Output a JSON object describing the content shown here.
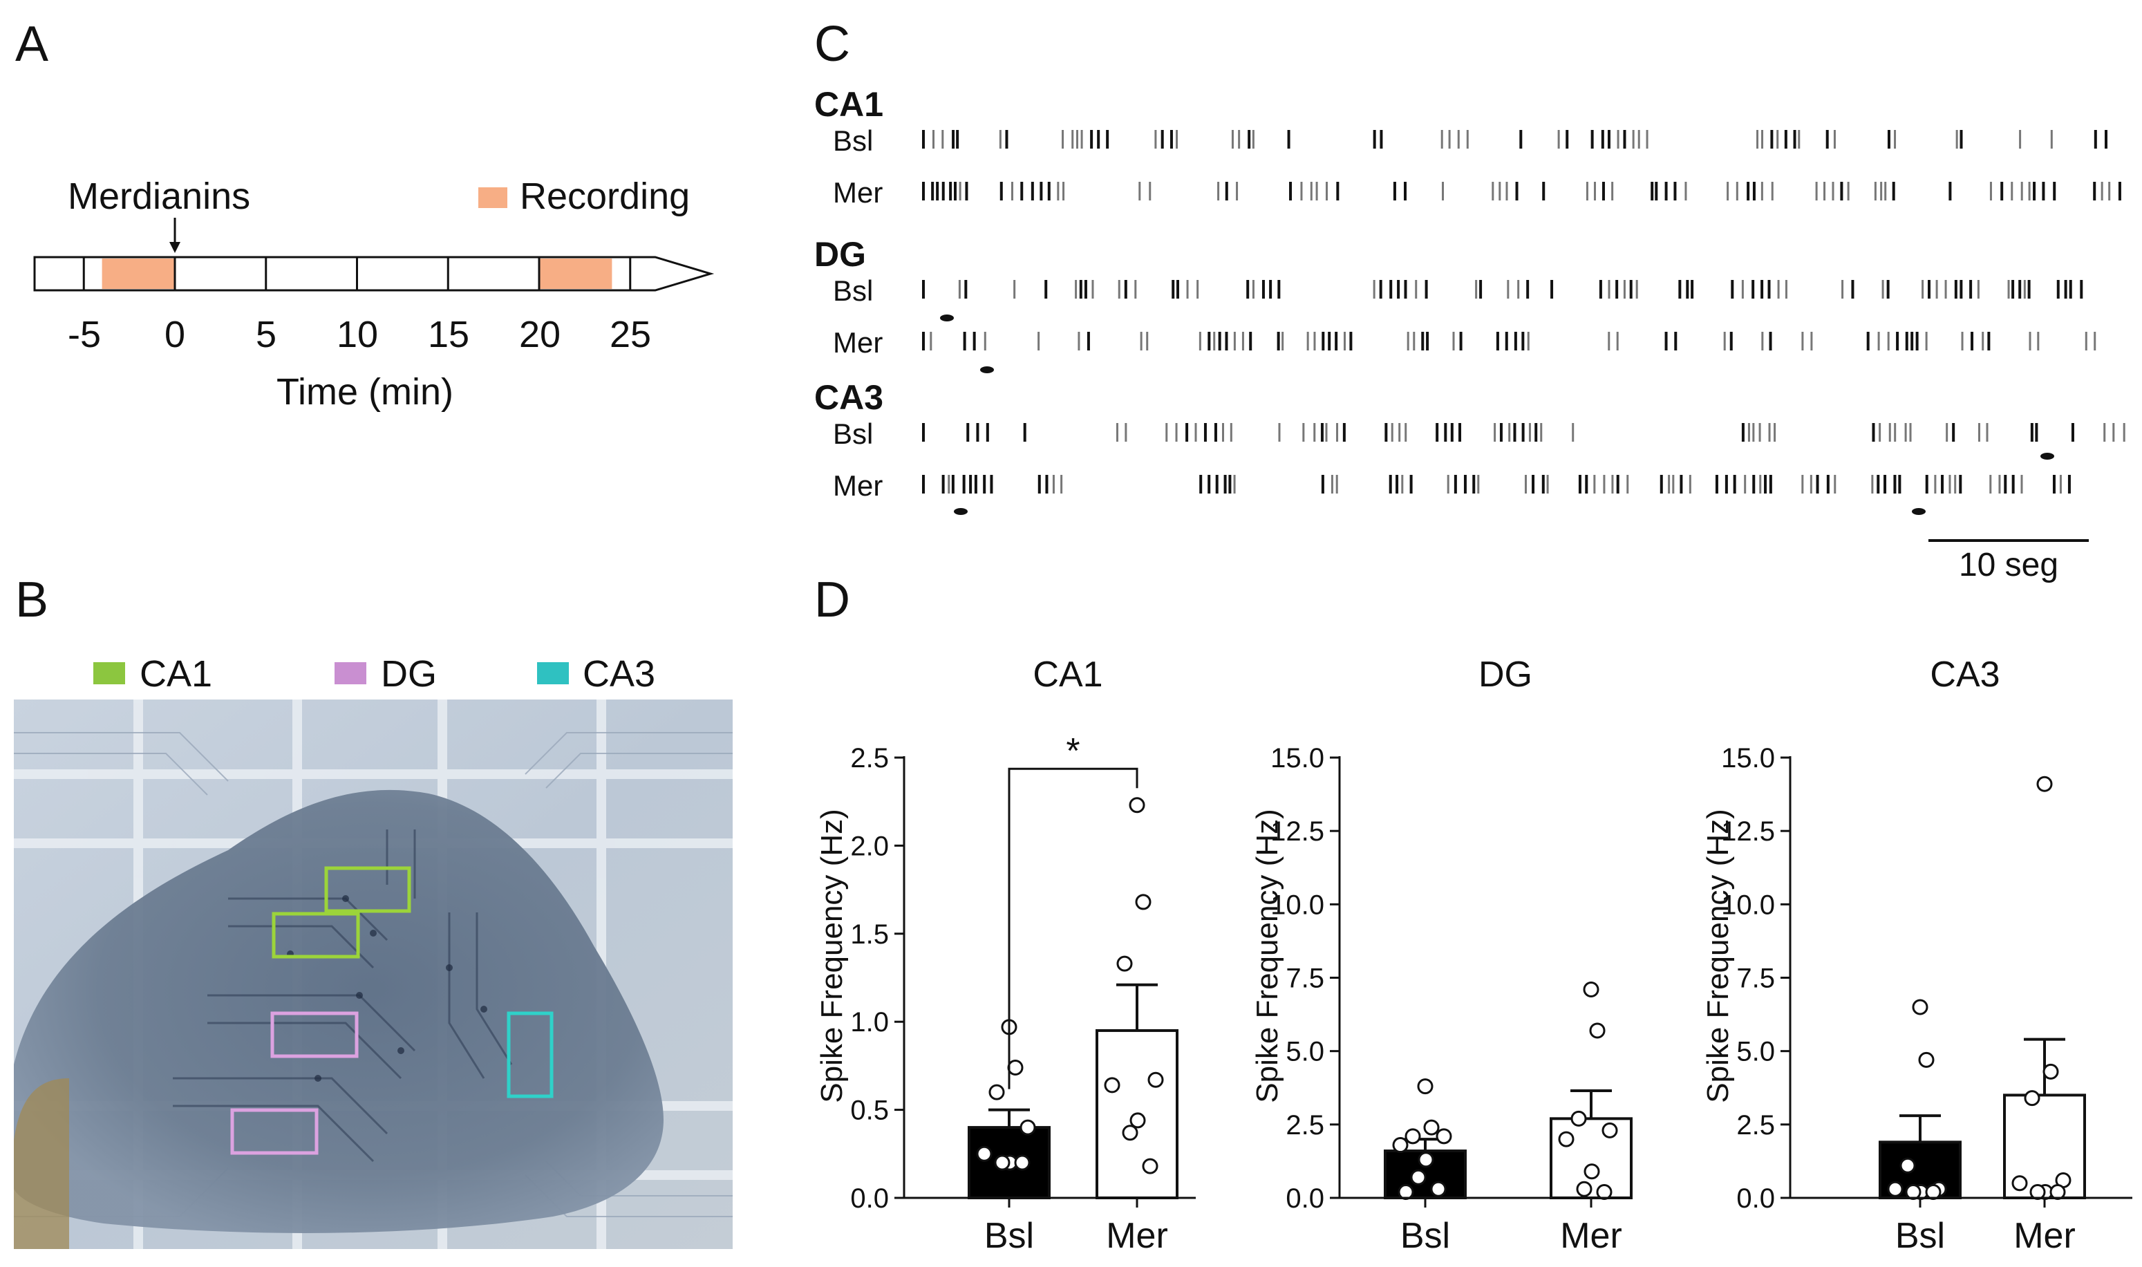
{
  "panels": {
    "a": "A",
    "b": "B",
    "c": "C",
    "d": "D"
  },
  "timeline": {
    "drug_label": "Merdianins",
    "legend_label": "Recording",
    "recording_color": "#f7ae85",
    "ticks": [
      "-5",
      "0",
      "5",
      "10",
      "15",
      "20",
      "25"
    ],
    "xlabel": "Time (min)",
    "recording_windows": [
      [
        -4,
        0
      ],
      [
        20,
        24
      ]
    ]
  },
  "photo": {
    "legend": [
      {
        "label": "CA1",
        "color": "#8cc63f"
      },
      {
        "label": "DG",
        "color": "#c98fd1"
      },
      {
        "label": "CA3",
        "color": "#2fc1c1"
      }
    ]
  },
  "raster": {
    "groups": [
      {
        "region": "CA1",
        "traces": [
          "Bsl",
          "Mer"
        ]
      },
      {
        "region": "DG",
        "traces": [
          "Bsl",
          "Mer"
        ]
      },
      {
        "region": "CA3",
        "traces": [
          "Bsl",
          "Mer"
        ]
      }
    ],
    "scalebar_label": "10 seg"
  },
  "chart_data": [
    {
      "type": "bar",
      "title": "CA1",
      "ylabel": "Spike Frequency (Hz)",
      "categories": [
        "Bsl",
        "Mer"
      ],
      "values": [
        0.4,
        0.95
      ],
      "sem": [
        0.1,
        0.26
      ],
      "ylim": [
        0,
        2.5
      ],
      "yticks": [
        "0.0",
        "0.5",
        "1.0",
        "1.5",
        "2.0",
        "2.5"
      ],
      "points": [
        [
          0.97,
          0.74,
          0.6,
          0.4,
          0.25,
          0.2,
          0.2,
          0.2
        ],
        [
          2.23,
          1.68,
          1.33,
          0.67,
          0.64,
          0.44,
          0.37,
          0.18
        ]
      ],
      "significance": "*",
      "bar_colors": [
        "#000000",
        "#ffffff"
      ]
    },
    {
      "type": "bar",
      "title": "DG",
      "ylabel": "Spike Frequency (Hz)",
      "categories": [
        "Bsl",
        "Mer"
      ],
      "values": [
        1.6,
        2.7
      ],
      "sem": [
        0.4,
        0.95
      ],
      "ylim": [
        0,
        15
      ],
      "yticks": [
        "0.0",
        "2.5",
        "5.0",
        "7.5",
        "10.0",
        "12.5",
        "15.0"
      ],
      "points": [
        [
          3.8,
          2.4,
          2.1,
          2.1,
          1.8,
          1.3,
          0.7,
          0.3,
          0.2
        ],
        [
          7.1,
          5.7,
          2.7,
          2.3,
          2.0,
          0.9,
          0.3,
          0.2
        ]
      ],
      "significance": "",
      "bar_colors": [
        "#000000",
        "#ffffff"
      ]
    },
    {
      "type": "bar",
      "title": "CA3",
      "ylabel": "Spike Frequency (Hz)",
      "categories": [
        "Bsl",
        "Mer"
      ],
      "values": [
        1.9,
        3.5
      ],
      "sem": [
        0.9,
        1.9
      ],
      "ylim": [
        0,
        15
      ],
      "yticks": [
        "0.0",
        "2.5",
        "5.0",
        "7.5",
        "10.0",
        "12.5",
        "15.0"
      ],
      "points": [
        [
          6.5,
          4.7,
          1.1,
          0.3,
          0.3,
          0.2,
          0.2,
          0.2
        ],
        [
          14.1,
          4.3,
          3.4,
          0.6,
          0.5,
          0.2,
          0.2,
          0.2
        ]
      ],
      "significance": "",
      "bar_colors": [
        "#000000",
        "#ffffff"
      ]
    }
  ]
}
